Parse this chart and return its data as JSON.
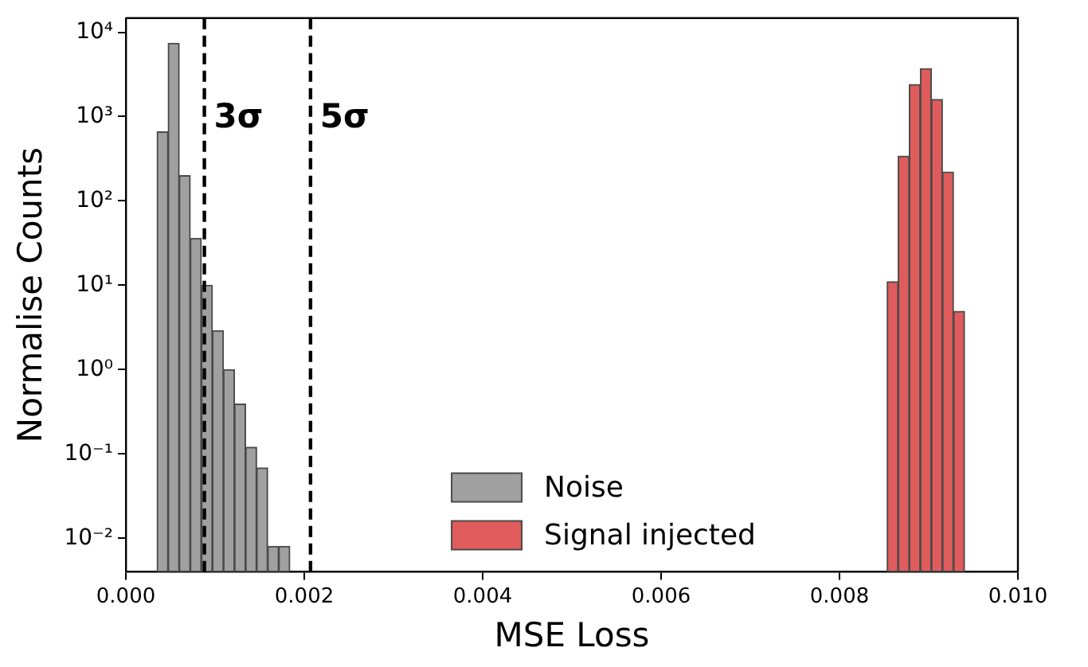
{
  "chart_data": {
    "type": "histogram",
    "xlabel": "MSE Loss",
    "ylabel": "Normalise Counts",
    "xlim": [
      0,
      0.01
    ],
    "xticks": [
      {
        "value": 0,
        "label": "0.000"
      },
      {
        "value": 0.002,
        "label": "0.002"
      },
      {
        "value": 0.004,
        "label": "0.004"
      },
      {
        "value": 0.006,
        "label": "0.006"
      },
      {
        "value": 0.008,
        "label": "0.008"
      },
      {
        "value": 0.01,
        "label": "0.010"
      }
    ],
    "ylim": [
      0.004,
      14700
    ],
    "yticks": [
      {
        "value": 0.01,
        "label": "10⁻²"
      },
      {
        "value": 0.1,
        "label": "10⁻¹"
      },
      {
        "value": 1,
        "label": "10⁰"
      },
      {
        "value": 10,
        "label": "10¹"
      },
      {
        "value": 100,
        "label": "10²"
      },
      {
        "value": 1000,
        "label": "10³"
      },
      {
        "value": 10000,
        "label": "10⁴"
      }
    ],
    "log": "y",
    "grid": false,
    "legend": "bottom",
    "series": [
      {
        "name": "Noise",
        "color": "#a0a0a0",
        "values": [
          660,
          7400,
          200,
          36,
          10,
          2.9,
          1.0,
          0.39,
          0.12,
          0.068,
          0.008,
          0.008,
          null,
          null,
          null,
          null,
          null,
          null,
          null,
          null,
          null,
          null,
          null,
          null,
          null,
          null,
          null,
          null,
          null,
          null,
          null,
          null,
          null,
          null,
          null,
          null,
          null,
          null,
          null,
          null,
          null,
          null,
          null,
          null,
          null,
          null,
          null,
          null,
          null,
          null,
          null,
          null,
          null,
          null,
          null,
          null,
          null,
          null,
          null,
          null,
          null,
          null,
          null,
          null,
          null,
          null,
          null,
          null,
          null,
          null,
          null,
          null,
          null
        ]
      },
      {
        "name": "Signal injected",
        "color": "#e05c5c",
        "values": [
          null,
          null,
          null,
          null,
          null,
          null,
          null,
          null,
          null,
          null,
          null,
          null,
          null,
          null,
          null,
          null,
          null,
          null,
          null,
          null,
          null,
          null,
          null,
          null,
          null,
          null,
          null,
          null,
          null,
          null,
          null,
          null,
          null,
          null,
          null,
          null,
          null,
          null,
          null,
          null,
          null,
          null,
          null,
          null,
          null,
          null,
          null,
          null,
          null,
          null,
          null,
          null,
          null,
          null,
          null,
          null,
          null,
          null,
          null,
          null,
          null,
          null,
          null,
          null,
          null,
          null,
          11,
          340,
          2400,
          3700,
          1600,
          220,
          4.9
        ]
      }
    ],
    "bins": [
      0.00035,
      0.000474,
      0.000598,
      0.000722,
      0.000846,
      0.00097,
      0.001094,
      0.001218,
      0.001342,
      0.001466,
      0.00159,
      0.001714,
      0.001838,
      0.001962,
      0.002086,
      0.00221,
      0.002334,
      0.002458,
      0.002582,
      0.002706,
      0.00283,
      0.002954,
      0.003078,
      0.003202,
      0.003326,
      0.00345,
      0.003574,
      0.003698,
      0.003822,
      0.003946,
      0.00407,
      0.004194,
      0.004318,
      0.004442,
      0.004566,
      0.00469,
      0.004814,
      0.004938,
      0.005062,
      0.005186,
      0.00531,
      0.005434,
      0.005558,
      0.005682,
      0.005806,
      0.00593,
      0.006054,
      0.006178,
      0.006302,
      0.006426,
      0.00655,
      0.006674,
      0.006798,
      0.006922,
      0.007046,
      0.00717,
      0.007294,
      0.007418,
      0.007542,
      0.007666,
      0.00779,
      0.007914,
      0.008038,
      0.008162,
      0.008286,
      0.00841,
      0.008534,
      0.008658,
      0.008782,
      0.008906,
      0.00903,
      0.009154,
      0.009278,
      0.009402
    ],
    "ref_lines": [
      {
        "axis": "x",
        "value": 0.00088,
        "label": "3σ",
        "color": "#000000",
        "line_style": "dashed"
      },
      {
        "axis": "x",
        "value": 0.00207,
        "label": "5σ",
        "color": "#000000",
        "line_style": "dashed"
      }
    ]
  }
}
